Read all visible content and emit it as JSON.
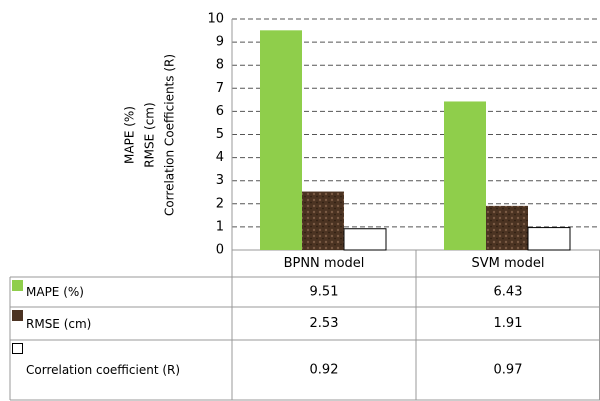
{
  "chart_data": {
    "type": "bar",
    "y_label_lines": [
      "MAPE (%)",
      "RMSE (cm)",
      "Correlation Coefficients (R)"
    ],
    "categories": [
      "BPNN model",
      "SVM model"
    ],
    "series": [
      {
        "name": "MAPE (%)",
        "color": "#8fce4b",
        "values": [
          9.51,
          6.43
        ]
      },
      {
        "name": "RMSE (cm)",
        "color": "#4b3322",
        "values": [
          2.53,
          1.91
        ]
      },
      {
        "name": "Correlation coefficient (R)",
        "color": "#ffffff",
        "values": [
          0.92,
          0.97
        ]
      }
    ],
    "ylim": [
      0,
      10
    ],
    "yticks": [
      0,
      1,
      2,
      3,
      4,
      5,
      6,
      7,
      8,
      9,
      10
    ],
    "grid": true
  }
}
